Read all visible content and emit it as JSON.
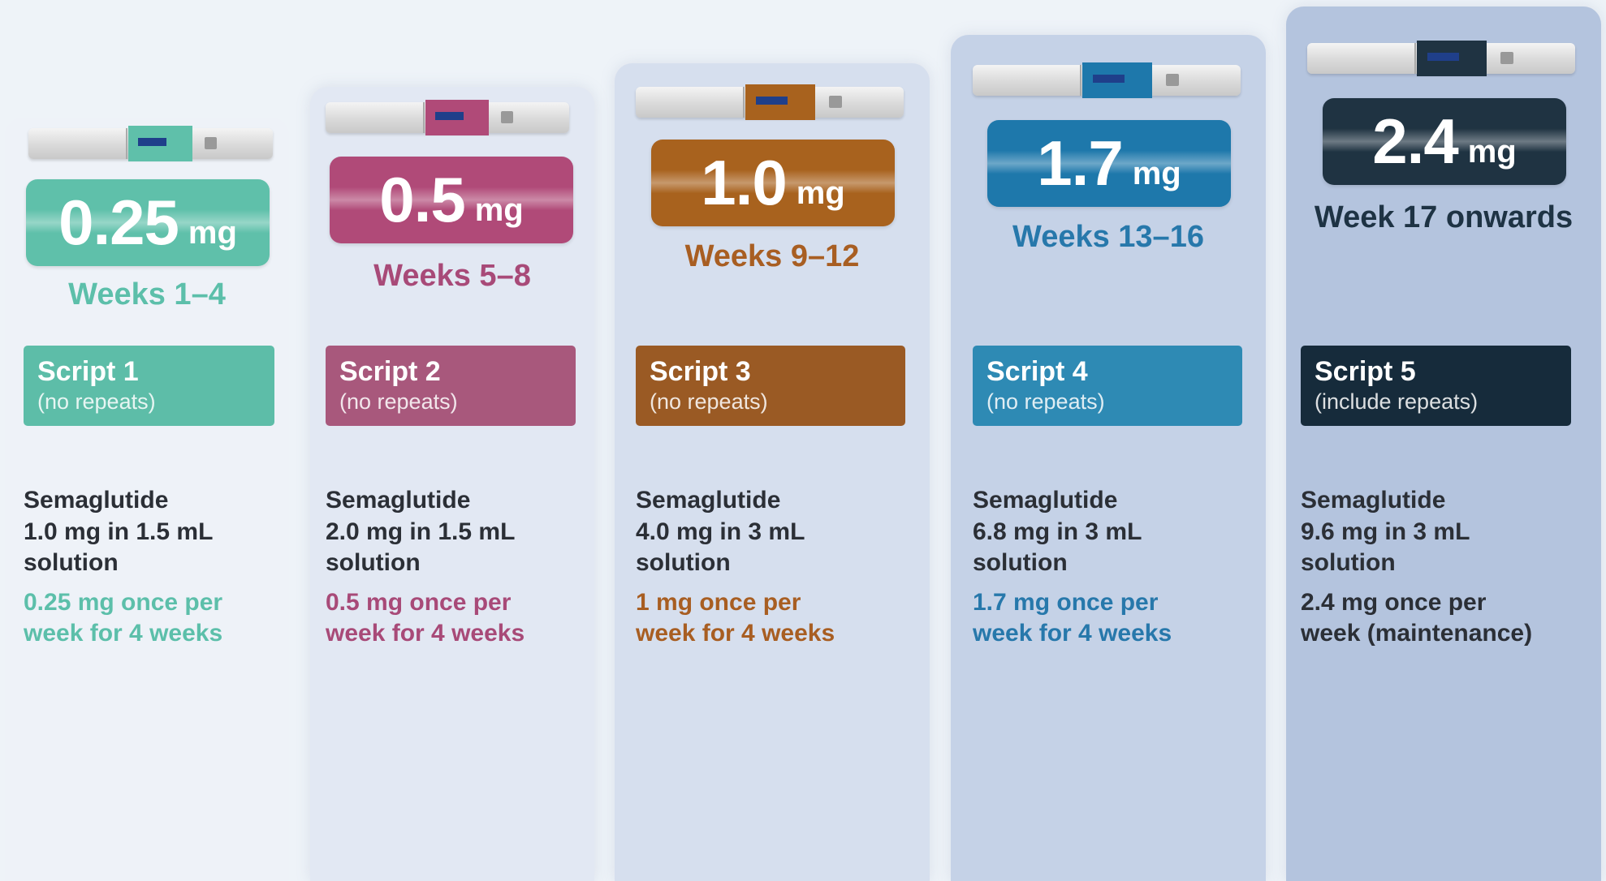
{
  "steps": [
    {
      "dose": "0.25",
      "unit": "mg",
      "weeks": "Weeks 1–4",
      "script": "Script 1",
      "repeats": "(no repeats)",
      "drug": "Semaglutide",
      "strength": "1.0 mg in 1.5 mL",
      "form": "solution",
      "dosing1": "0.25 mg once per",
      "dosing2": "week for 4 weeks",
      "color": "#5dbda8",
      "pill": "#5fc0aa",
      "text": "#5cbfaa",
      "bg": "#eef2f8"
    },
    {
      "dose": "0.5",
      "unit": "mg",
      "weeks": "Weeks 5–8",
      "script": "Script 2",
      "repeats": "(no repeats)",
      "drug": "Semaglutide",
      "strength": "2.0 mg in 1.5 mL",
      "form": "solution",
      "dosing1": "0.5 mg once per",
      "dosing2": "week for 4 weeks",
      "color": "#a8587c",
      "pill": "#b04a78",
      "text": "#a84a78",
      "bg": "#e2e8f3"
    },
    {
      "dose": "1.0",
      "unit": "mg",
      "weeks": "Weeks 9–12",
      "script": "Script 3",
      "repeats": "(no repeats)",
      "drug": "Semaglutide",
      "strength": "4.0 mg in 3 mL",
      "form": "solution",
      "dosing1": "1 mg once per",
      "dosing2": "week for 4 weeks",
      "color": "#9a5a24",
      "pill": "#a8621e",
      "text": "#a85e22",
      "bg": "#d6dfee"
    },
    {
      "dose": "1.7",
      "unit": "mg",
      "weeks": "Weeks 13–16",
      "script": "Script 4",
      "repeats": "(no repeats)",
      "drug": "Semaglutide",
      "strength": "6.8 mg in 3 mL",
      "form": "solution",
      "dosing1": "1.7 mg once per",
      "dosing2": "week for 4 weeks",
      "color": "#2e8ab4",
      "pill": "#1e78ab",
      "text": "#2778ab",
      "bg": "#c5d2e7"
    },
    {
      "dose": "2.4",
      "unit": "mg",
      "weeks": "Week 17 onwards",
      "script": "Script 5",
      "repeats": "(include repeats)",
      "drug": "Semaglutide",
      "strength": "9.6 mg in 3 mL",
      "form": "solution",
      "dosing1": "2.4 mg once per",
      "dosing2": "week (maintenance)",
      "color": "#162b3b",
      "pill": "#1f3342",
      "text": "#1e3344",
      "bg": "#b4c4de"
    }
  ]
}
